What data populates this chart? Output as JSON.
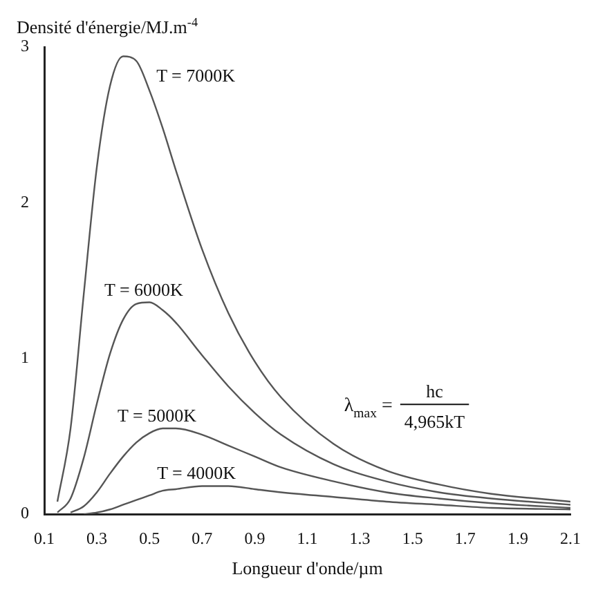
{
  "chart_data": {
    "type": "line",
    "ylabel": "Densité d'énergie/MJ.m$^{-4}$",
    "xlabel": "Longueur d'onde/µm",
    "xlim": [
      0.1,
      2.1
    ],
    "xticks": [
      0.1,
      0.3,
      0.5,
      0.7,
      0.9,
      1.1,
      1.3,
      1.5,
      1.7,
      1.9,
      2.1
    ],
    "ylim": [
      0,
      3
    ],
    "yticks": [
      0,
      1,
      2,
      3
    ],
    "grid": false,
    "legend": false,
    "marker": "none",
    "line_style": "solid",
    "annotations": [
      "λ$_{max}$ =",
      "hc",
      "4,965kT"
    ],
    "series": [
      {
        "name": "T = 7000K",
        "color": "#555555",
        "x": [
          0.15,
          0.2,
          0.25,
          0.3,
          0.35,
          0.4,
          0.45,
          0.5,
          0.55,
          0.6,
          0.7,
          0.8,
          0.9,
          1.0,
          1.2,
          1.4,
          1.6,
          1.8,
          2.1
        ],
        "values": [
          0.08,
          0.55,
          1.41,
          2.23,
          2.75,
          2.94,
          2.91,
          2.72,
          2.48,
          2.21,
          1.7,
          1.29,
          0.98,
          0.75,
          0.45,
          0.28,
          0.19,
          0.13,
          0.08
        ]
      },
      {
        "name": "T = 6000K",
        "color": "#555555",
        "x": [
          0.15,
          0.2,
          0.25,
          0.3,
          0.35,
          0.4,
          0.45,
          0.5,
          0.55,
          0.6,
          0.7,
          0.8,
          0.9,
          1.0,
          1.2,
          1.4,
          1.6,
          1.8,
          2.1
        ],
        "values": [
          0.01,
          0.1,
          0.36,
          0.71,
          1.03,
          1.25,
          1.35,
          1.36,
          1.31,
          1.23,
          1.02,
          0.82,
          0.65,
          0.51,
          0.32,
          0.21,
          0.14,
          0.1,
          0.06
        ]
      },
      {
        "name": "T = 5000K",
        "color": "#555555",
        "x": [
          0.2,
          0.25,
          0.3,
          0.35,
          0.4,
          0.45,
          0.5,
          0.55,
          0.6,
          0.7,
          0.8,
          0.9,
          1.0,
          1.2,
          1.4,
          1.6,
          1.8,
          2.1
        ],
        "values": [
          0.01,
          0.05,
          0.14,
          0.26,
          0.37,
          0.46,
          0.52,
          0.55,
          0.55,
          0.51,
          0.44,
          0.37,
          0.3,
          0.21,
          0.14,
          0.1,
          0.07,
          0.04
        ]
      },
      {
        "name": "T = 4000K",
        "color": "#555555",
        "x": [
          0.25,
          0.3,
          0.35,
          0.4,
          0.45,
          0.5,
          0.55,
          0.6,
          0.7,
          0.8,
          0.9,
          1.0,
          1.2,
          1.4,
          1.6,
          1.8,
          2.1
        ],
        "values": [
          0,
          0.01,
          0.03,
          0.06,
          0.09,
          0.12,
          0.15,
          0.16,
          0.18,
          0.18,
          0.16,
          0.14,
          0.11,
          0.08,
          0.06,
          0.04,
          0.03
        ]
      }
    ]
  }
}
